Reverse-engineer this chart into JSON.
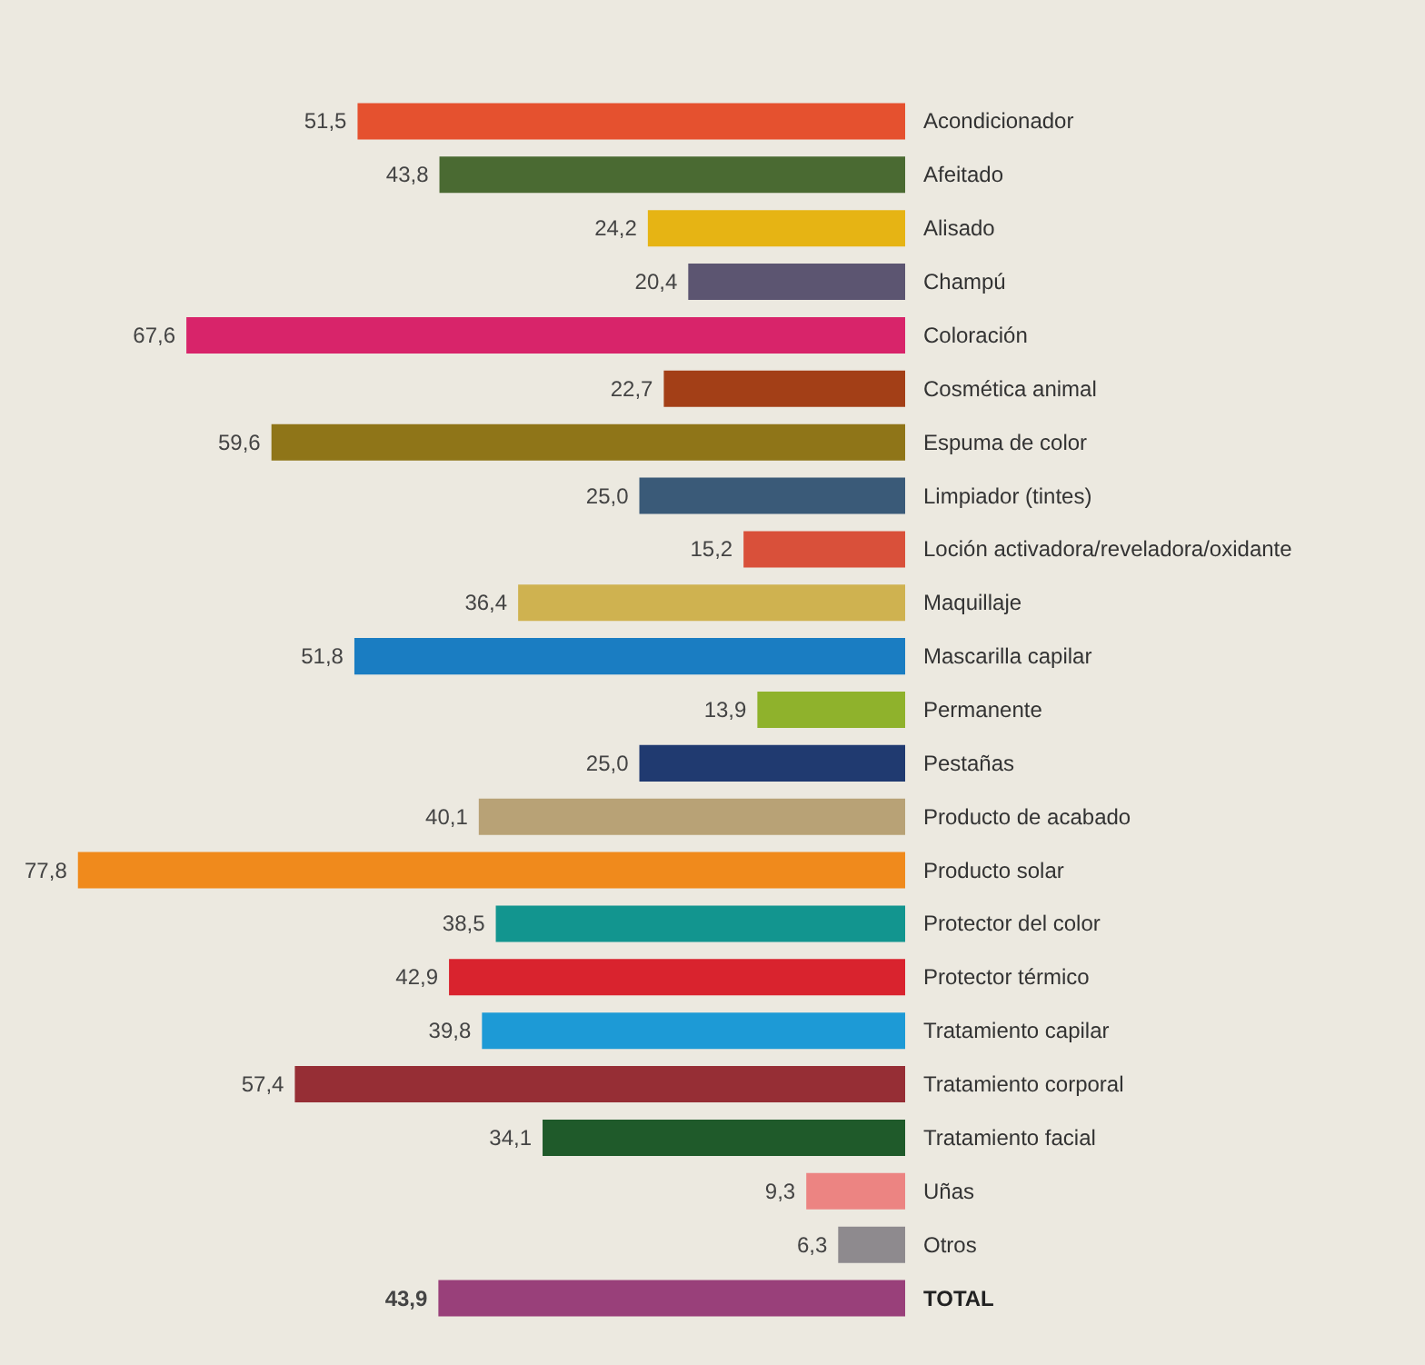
{
  "chart_data": {
    "type": "bar",
    "orientation": "horizontal",
    "categories": [
      "Acondicionador",
      "Afeitado",
      "Alisado",
      "Champú",
      "Coloración",
      "Cosmética animal",
      "Espuma de color",
      "Limpiador (tintes)",
      "Loción activadora/reveladora/oxidante",
      "Maquillaje",
      "Mascarilla capilar",
      "Permanente",
      "Pestañas",
      "Producto de acabado",
      "Producto solar",
      "Protector del color",
      "Protector térmico",
      "Tratamiento capilar",
      "Tratamiento corporal",
      "Tratamiento facial",
      "Uñas",
      "Otros",
      "TOTAL"
    ],
    "values": [
      51.5,
      43.8,
      24.2,
      20.4,
      67.6,
      22.7,
      59.6,
      25.0,
      15.2,
      36.4,
      51.8,
      13.9,
      25.0,
      40.1,
      77.8,
      38.5,
      42.9,
      39.8,
      57.4,
      34.1,
      9.3,
      6.3,
      43.9
    ],
    "colors": [
      "#e5512f",
      "#4a6a32",
      "#e6b414",
      "#5c5571",
      "#d8246a",
      "#a33f17",
      "#8f7518",
      "#3a5a78",
      "#d9503a",
      "#cfb250",
      "#1a7dc2",
      "#8fb22c",
      "#203a70",
      "#b8a276",
      "#f08a1c",
      "#12958f",
      "#d9232e",
      "#1d9ad6",
      "#962e35",
      "#1f5a2a",
      "#ec8482",
      "#8e8a8e",
      "#99407a"
    ],
    "value_labels": [
      "51,5",
      "43,8",
      "24,2",
      "20,4",
      "67,6",
      "22,7",
      "59,6",
      "25,0",
      "15,2",
      "36,4",
      "51,8",
      "13,9",
      "25,0",
      "40,1",
      "77,8",
      "38,5",
      "42,9",
      "39,8",
      "57,4",
      "34,1",
      "9,3",
      "6,3",
      "43,9"
    ]
  }
}
